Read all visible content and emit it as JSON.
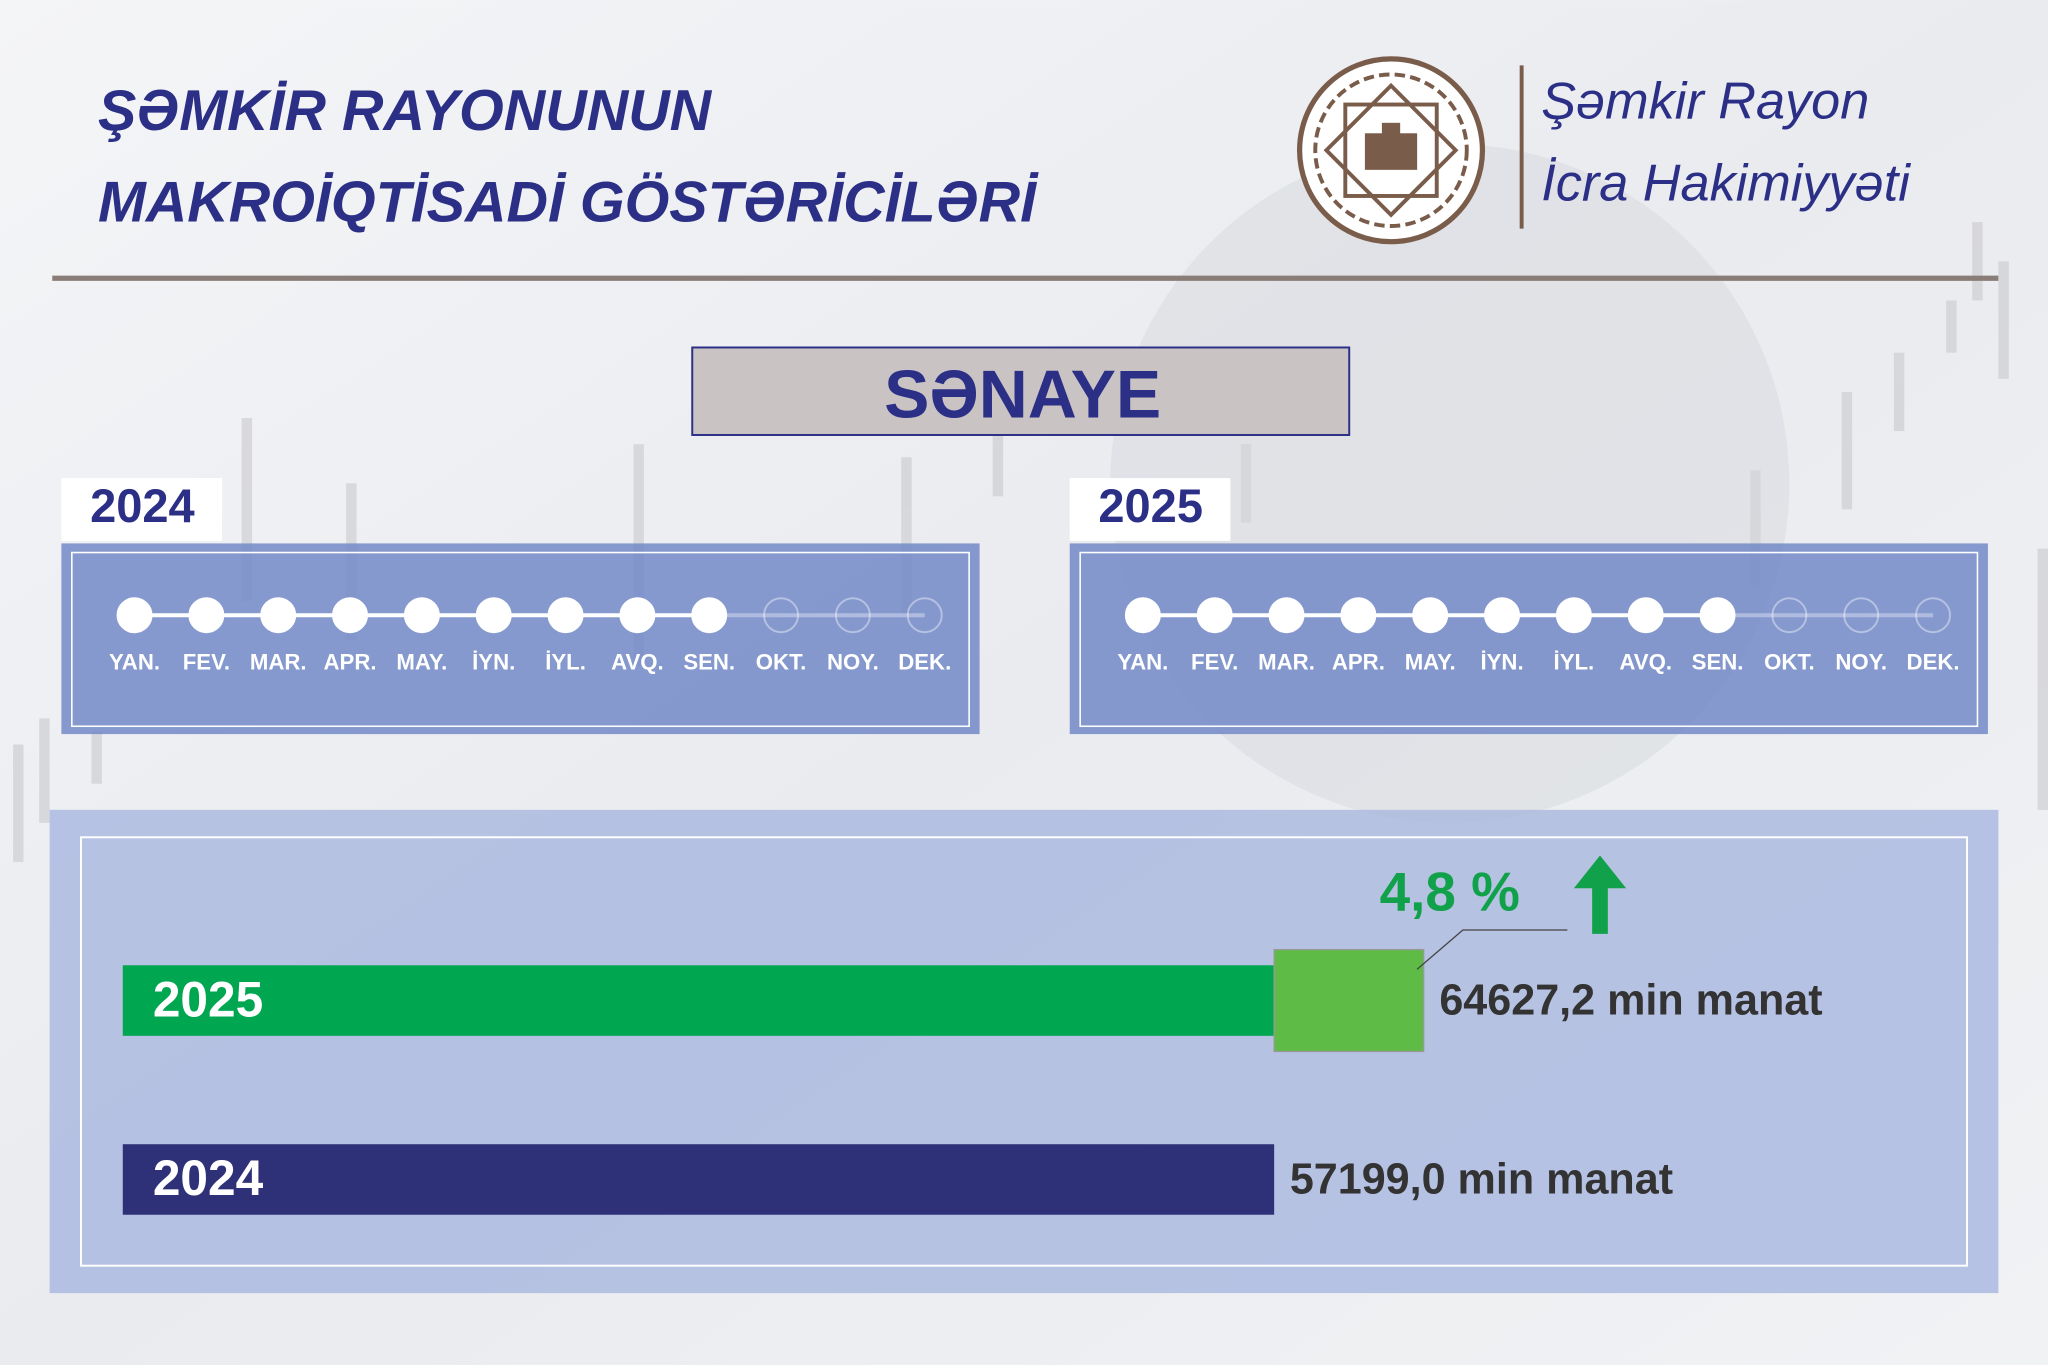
{
  "header": {
    "title_lines": [
      "ŞƏMKİR RAYONUNUN",
      "MAKROİQTİSADİ GÖSTƏRİCİLƏRİ"
    ],
    "org_lines": [
      "Şəmkir Rayon",
      "İcra Hakimiyyəti"
    ]
  },
  "section": "SƏNAYE",
  "timelines": [
    {
      "year": "2024",
      "months": [
        {
          "label": "YAN.",
          "done": true
        },
        {
          "label": "FEV.",
          "done": true
        },
        {
          "label": "MAR.",
          "done": true
        },
        {
          "label": "APR.",
          "done": true
        },
        {
          "label": "MAY.",
          "done": true
        },
        {
          "label": "İYN.",
          "done": true
        },
        {
          "label": "İYL.",
          "done": true
        },
        {
          "label": "AVQ.",
          "done": true
        },
        {
          "label": "SEN.",
          "done": true
        },
        {
          "label": "OKT.",
          "done": false
        },
        {
          "label": "NOY.",
          "done": false
        },
        {
          "label": "DEK.",
          "done": false
        }
      ]
    },
    {
      "year": "2025",
      "months": [
        {
          "label": "YAN.",
          "done": true
        },
        {
          "label": "FEV.",
          "done": true
        },
        {
          "label": "MAR.",
          "done": true
        },
        {
          "label": "APR.",
          "done": true
        },
        {
          "label": "MAY.",
          "done": true
        },
        {
          "label": "İYN.",
          "done": true
        },
        {
          "label": "İYL.",
          "done": true
        },
        {
          "label": "AVQ.",
          "done": true
        },
        {
          "label": "SEN.",
          "done": true
        },
        {
          "label": "OKT.",
          "done": false
        },
        {
          "label": "NOY.",
          "done": false
        },
        {
          "label": "DEK.",
          "done": false
        }
      ]
    }
  ],
  "chart_data": {
    "type": "hbar",
    "categories": [
      "2025",
      "2024"
    ],
    "values": [
      64627.2,
      57199.0
    ],
    "value_labels": [
      "64627,2 min manat",
      "57199,0 min manat"
    ],
    "colors": [
      "#00a650",
      "#2e3178"
    ],
    "increase_color": "#5dbb46",
    "annotation": "4,8 %"
  }
}
